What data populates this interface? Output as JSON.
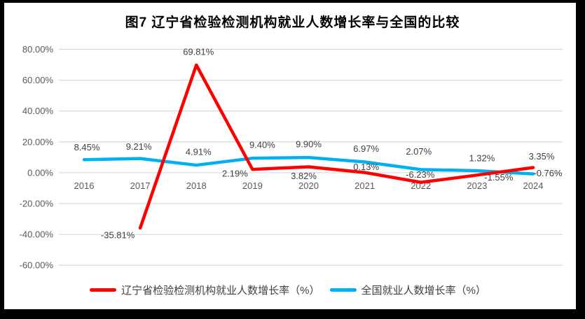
{
  "title": "图7 辽宁省检验检测机构就业人数增长率与全国的比较",
  "chart_data": {
    "type": "line",
    "title": "图7 辽宁省检验检测机构就业人数增长率与全国的比较",
    "categories": [
      "2016",
      "2017",
      "2018",
      "2019",
      "2020",
      "2021",
      "2022",
      "2023",
      "2024"
    ],
    "series": [
      {
        "name": "辽宁省检验检测机构就业人数增长率（%）",
        "color": "#FF0000",
        "values": [
          null,
          -35.81,
          69.81,
          2.19,
          3.82,
          0.13,
          -6.23,
          -1.55,
          3.35
        ],
        "point_labels": [
          "",
          "-35.81%",
          "69.81%",
          "2.19%",
          "3.82%",
          "0.13%",
          "-6.23%",
          "-1.55%",
          "3.35%"
        ]
      },
      {
        "name": "全国就业人数增长率（%）",
        "color": "#00B0F0",
        "values": [
          8.45,
          9.21,
          4.91,
          9.4,
          9.9,
          6.97,
          2.07,
          1.32,
          -0.76
        ],
        "point_labels": [
          "8.45%",
          "9.21%",
          "4.91%",
          "9.40%",
          "9.90%",
          "6.97%",
          "2.07%",
          "1.32%",
          "-0.76%"
        ]
      }
    ],
    "y_axis": {
      "min": -60,
      "max": 80,
      "step": 20,
      "tick_labels": [
        "80.00%",
        "60.00%",
        "40.00%",
        "20.00%",
        "0.00%",
        "-20.00%",
        "-40.00%",
        "-60.00%"
      ]
    },
    "x_axis": {
      "tick_labels": [
        "2016",
        "2017",
        "2018",
        "2019",
        "2020",
        "2021",
        "2022",
        "2023",
        "2024"
      ]
    },
    "legend_position": "bottom",
    "grid": "horizontal"
  },
  "legend": {
    "items": [
      {
        "label": "辽宁省检验检测机构就业人数增长率（%）",
        "color": "#FF0000"
      },
      {
        "label": "全国就业人数增长率（%）",
        "color": "#00B0F0"
      }
    ]
  },
  "colors": {
    "series_liaoning": "#FF0000",
    "series_national": "#00B0F0",
    "gridline": "#DCDCDC",
    "axis_text": "#595959",
    "data_label_text": "#404040",
    "frame": "#000000",
    "background": "#FFFFFF"
  }
}
